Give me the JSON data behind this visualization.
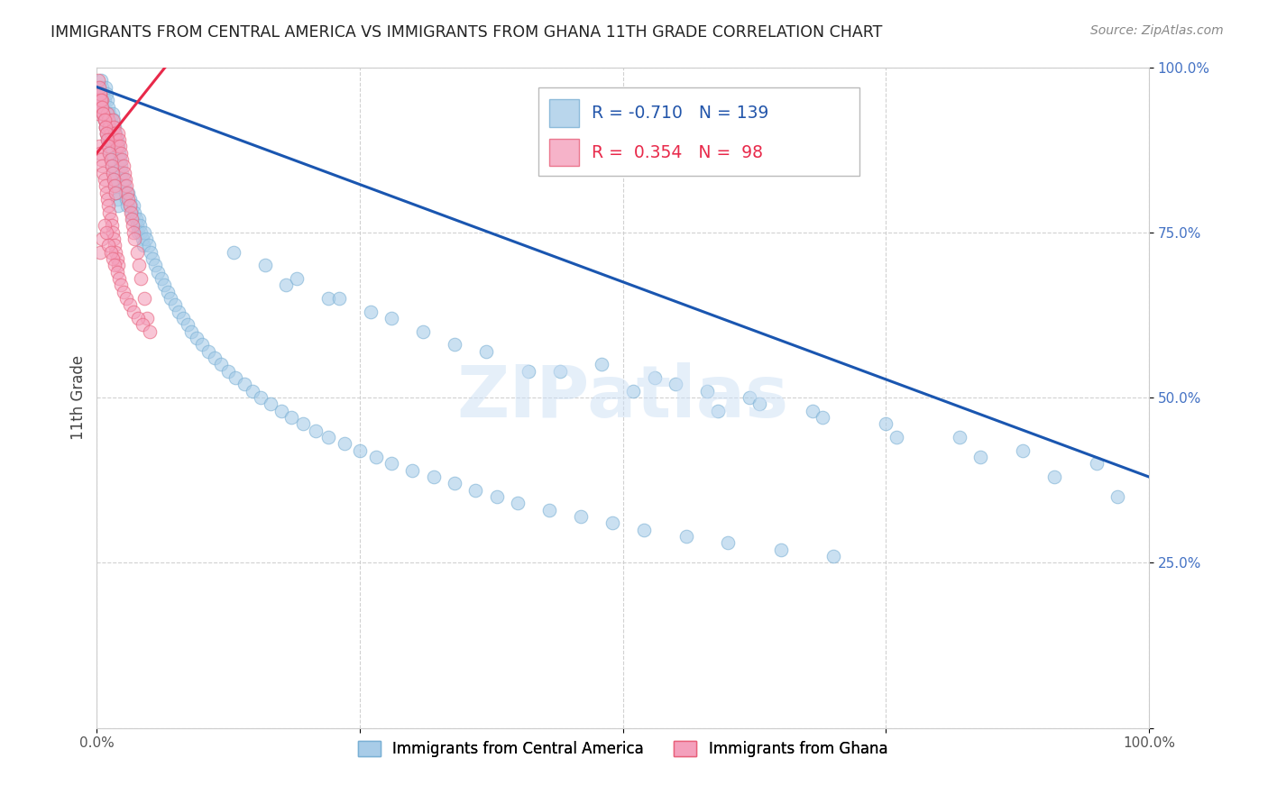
{
  "title": "IMMIGRANTS FROM CENTRAL AMERICA VS IMMIGRANTS FROM GHANA 11TH GRADE CORRELATION CHART",
  "source": "Source: ZipAtlas.com",
  "ylabel": "11th Grade",
  "xlim": [
    0.0,
    1.0
  ],
  "ylim": [
    0.0,
    1.0
  ],
  "xticks": [
    0.0,
    0.25,
    0.5,
    0.75,
    1.0
  ],
  "yticks": [
    0.0,
    0.25,
    0.5,
    0.75,
    1.0
  ],
  "blue_color": "#a8cce8",
  "blue_edge_color": "#7ab0d4",
  "pink_color": "#f4a0bc",
  "pink_edge_color": "#e8607a",
  "blue_line_color": "#1a56b0",
  "pink_line_color": "#e8294a",
  "blue_line_x": [
    0.0,
    1.0
  ],
  "blue_line_y": [
    0.97,
    0.38
  ],
  "pink_line_x": [
    -0.005,
    0.075
  ],
  "pink_line_y": [
    0.86,
    1.02
  ],
  "blue_scatter_x": [
    0.002,
    0.003,
    0.004,
    0.004,
    0.005,
    0.005,
    0.006,
    0.006,
    0.007,
    0.007,
    0.008,
    0.008,
    0.009,
    0.009,
    0.01,
    0.01,
    0.011,
    0.011,
    0.012,
    0.012,
    0.013,
    0.013,
    0.014,
    0.014,
    0.015,
    0.015,
    0.016,
    0.016,
    0.017,
    0.017,
    0.018,
    0.018,
    0.019,
    0.019,
    0.02,
    0.02,
    0.021,
    0.022,
    0.023,
    0.024,
    0.025,
    0.026,
    0.027,
    0.028,
    0.029,
    0.03,
    0.031,
    0.032,
    0.033,
    0.034,
    0.035,
    0.036,
    0.037,
    0.038,
    0.039,
    0.04,
    0.041,
    0.042,
    0.043,
    0.044,
    0.045,
    0.047,
    0.049,
    0.051,
    0.053,
    0.055,
    0.058,
    0.061,
    0.064,
    0.067,
    0.07,
    0.074,
    0.078,
    0.082,
    0.086,
    0.09,
    0.095,
    0.1,
    0.106,
    0.112,
    0.118,
    0.125,
    0.132,
    0.14,
    0.148,
    0.156,
    0.165,
    0.175,
    0.185,
    0.196,
    0.208,
    0.22,
    0.235,
    0.25,
    0.265,
    0.28,
    0.3,
    0.32,
    0.34,
    0.36,
    0.38,
    0.4,
    0.43,
    0.46,
    0.49,
    0.52,
    0.56,
    0.6,
    0.65,
    0.7,
    0.55,
    0.62,
    0.68,
    0.75,
    0.82,
    0.88,
    0.95,
    0.18,
    0.22,
    0.26,
    0.31,
    0.37,
    0.44,
    0.51,
    0.59,
    0.13,
    0.16,
    0.19,
    0.23,
    0.28,
    0.34,
    0.41,
    0.48,
    0.53,
    0.58,
    0.63,
    0.69,
    0.76,
    0.84,
    0.91,
    0.97
  ],
  "blue_scatter_y": [
    0.97,
    0.96,
    0.95,
    0.98,
    0.94,
    0.97,
    0.96,
    0.93,
    0.95,
    0.92,
    0.97,
    0.91,
    0.96,
    0.9,
    0.95,
    0.89,
    0.94,
    0.88,
    0.93,
    0.87,
    0.92,
    0.86,
    0.91,
    0.85,
    0.93,
    0.84,
    0.92,
    0.83,
    0.91,
    0.82,
    0.9,
    0.81,
    0.89,
    0.8,
    0.88,
    0.79,
    0.87,
    0.86,
    0.85,
    0.84,
    0.83,
    0.82,
    0.81,
    0.8,
    0.79,
    0.81,
    0.8,
    0.79,
    0.78,
    0.77,
    0.79,
    0.78,
    0.77,
    0.76,
    0.75,
    0.77,
    0.76,
    0.75,
    0.74,
    0.73,
    0.75,
    0.74,
    0.73,
    0.72,
    0.71,
    0.7,
    0.69,
    0.68,
    0.67,
    0.66,
    0.65,
    0.64,
    0.63,
    0.62,
    0.61,
    0.6,
    0.59,
    0.58,
    0.57,
    0.56,
    0.55,
    0.54,
    0.53,
    0.52,
    0.51,
    0.5,
    0.49,
    0.48,
    0.47,
    0.46,
    0.45,
    0.44,
    0.43,
    0.42,
    0.41,
    0.4,
    0.39,
    0.38,
    0.37,
    0.36,
    0.35,
    0.34,
    0.33,
    0.32,
    0.31,
    0.3,
    0.29,
    0.28,
    0.27,
    0.26,
    0.52,
    0.5,
    0.48,
    0.46,
    0.44,
    0.42,
    0.4,
    0.67,
    0.65,
    0.63,
    0.6,
    0.57,
    0.54,
    0.51,
    0.48,
    0.72,
    0.7,
    0.68,
    0.65,
    0.62,
    0.58,
    0.54,
    0.55,
    0.53,
    0.51,
    0.49,
    0.47,
    0.44,
    0.41,
    0.38,
    0.35
  ],
  "pink_scatter_x": [
    0.001,
    0.002,
    0.002,
    0.003,
    0.003,
    0.004,
    0.004,
    0.005,
    0.005,
    0.006,
    0.006,
    0.007,
    0.007,
    0.008,
    0.008,
    0.009,
    0.009,
    0.01,
    0.01,
    0.011,
    0.011,
    0.012,
    0.012,
    0.013,
    0.013,
    0.014,
    0.014,
    0.015,
    0.015,
    0.016,
    0.016,
    0.017,
    0.017,
    0.018,
    0.018,
    0.019,
    0.019,
    0.02,
    0.02,
    0.021,
    0.022,
    0.023,
    0.024,
    0.025,
    0.026,
    0.027,
    0.028,
    0.029,
    0.03,
    0.031,
    0.032,
    0.033,
    0.034,
    0.035,
    0.036,
    0.038,
    0.04,
    0.042,
    0.045,
    0.048,
    0.001,
    0.002,
    0.003,
    0.004,
    0.005,
    0.006,
    0.007,
    0.008,
    0.009,
    0.01,
    0.011,
    0.012,
    0.013,
    0.014,
    0.015,
    0.016,
    0.017,
    0.018,
    0.003,
    0.005,
    0.007,
    0.009,
    0.011,
    0.013,
    0.015,
    0.017,
    0.019,
    0.021,
    0.023,
    0.025,
    0.028,
    0.031,
    0.035,
    0.039,
    0.043,
    0.05
  ],
  "pink_scatter_y": [
    0.93,
    0.95,
    0.88,
    0.96,
    0.87,
    0.94,
    0.86,
    0.95,
    0.85,
    0.93,
    0.84,
    0.92,
    0.83,
    0.91,
    0.82,
    0.9,
    0.81,
    0.93,
    0.8,
    0.92,
    0.79,
    0.91,
    0.78,
    0.9,
    0.77,
    0.89,
    0.76,
    0.92,
    0.75,
    0.91,
    0.74,
    0.9,
    0.73,
    0.89,
    0.72,
    0.88,
    0.71,
    0.9,
    0.7,
    0.89,
    0.88,
    0.87,
    0.86,
    0.85,
    0.84,
    0.83,
    0.82,
    0.81,
    0.8,
    0.79,
    0.78,
    0.77,
    0.76,
    0.75,
    0.74,
    0.72,
    0.7,
    0.68,
    0.65,
    0.62,
    0.98,
    0.97,
    0.96,
    0.95,
    0.94,
    0.93,
    0.92,
    0.91,
    0.9,
    0.89,
    0.88,
    0.87,
    0.86,
    0.85,
    0.84,
    0.83,
    0.82,
    0.81,
    0.72,
    0.74,
    0.76,
    0.75,
    0.73,
    0.72,
    0.71,
    0.7,
    0.69,
    0.68,
    0.67,
    0.66,
    0.65,
    0.64,
    0.63,
    0.62,
    0.61,
    0.6
  ]
}
